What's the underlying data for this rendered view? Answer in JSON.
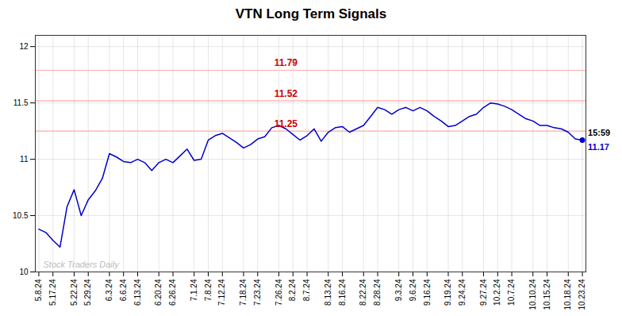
{
  "chart_data": {
    "type": "line",
    "title": "VTN Long Term Signals",
    "color": "#0000cc",
    "categories": [
      "5.8.24",
      null,
      "5.17.24",
      null,
      null,
      "5.22.24",
      null,
      "5.29.24",
      null,
      null,
      "6.3.24",
      null,
      "6.6.24",
      null,
      "6.13.24",
      null,
      null,
      "6.20.24",
      null,
      "6.26.24",
      null,
      null,
      "7.1.24",
      null,
      "7.8.24",
      null,
      "7.12.24",
      null,
      null,
      "7.18.24",
      null,
      "7.23.24",
      null,
      null,
      "7.26.24",
      null,
      "8.2.24",
      null,
      "8.7.24",
      null,
      null,
      "8.13.24",
      null,
      "8.16.24",
      null,
      null,
      "8.22.24",
      null,
      "8.28.24",
      null,
      null,
      "9.3.24",
      null,
      "9.6.24",
      null,
      "9.16.24",
      null,
      null,
      "9.19.24",
      null,
      "9.24.24",
      null,
      null,
      "9.27.24",
      null,
      "10.2.24",
      null,
      "10.7.24",
      null,
      null,
      "10.10.24",
      null,
      "10.15.24",
      null,
      null,
      "10.18.24",
      null,
      "10.23.24"
    ],
    "values": [
      10.38,
      10.35,
      10.28,
      10.22,
      10.58,
      10.73,
      10.5,
      10.64,
      10.72,
      10.83,
      11.05,
      11.02,
      10.98,
      10.97,
      11.0,
      10.97,
      10.9,
      10.97,
      11.0,
      10.97,
      11.03,
      11.09,
      10.99,
      11.0,
      11.17,
      11.21,
      11.23,
      11.19,
      11.15,
      11.1,
      11.13,
      11.18,
      11.2,
      11.28,
      11.3,
      11.27,
      11.22,
      11.17,
      11.21,
      11.27,
      11.16,
      11.24,
      11.28,
      11.29,
      11.24,
      11.27,
      11.3,
      11.38,
      11.46,
      11.44,
      11.4,
      11.44,
      11.46,
      11.43,
      11.46,
      11.43,
      11.38,
      11.34,
      11.29,
      11.3,
      11.34,
      11.38,
      11.4,
      11.46,
      11.5,
      11.49,
      11.47,
      11.44,
      11.4,
      11.36,
      11.34,
      11.3,
      11.3,
      11.28,
      11.27,
      11.24,
      11.18,
      11.17
    ],
    "ylim": [
      10,
      12.1
    ],
    "yticks": [
      10,
      10.5,
      11,
      11.5,
      12
    ],
    "grid": true,
    "hlines": [
      {
        "y": 11.79,
        "label": "11.79",
        "color": "#ffaaaa",
        "label_color": "#cc0000"
      },
      {
        "y": 11.52,
        "label": "11.52",
        "color": "#ffaaaa",
        "label_color": "#cc0000"
      },
      {
        "y": 11.25,
        "label": "11.25",
        "color": "#ffaaaa",
        "label_color": "#cc0000"
      }
    ],
    "annotations": [
      {
        "text": "15:59",
        "color": "#000000"
      },
      {
        "text": "11.17",
        "color": "#0000cc"
      }
    ],
    "watermark": {
      "text": "Stock Traders Daily",
      "color": "#bbbbbb"
    }
  }
}
